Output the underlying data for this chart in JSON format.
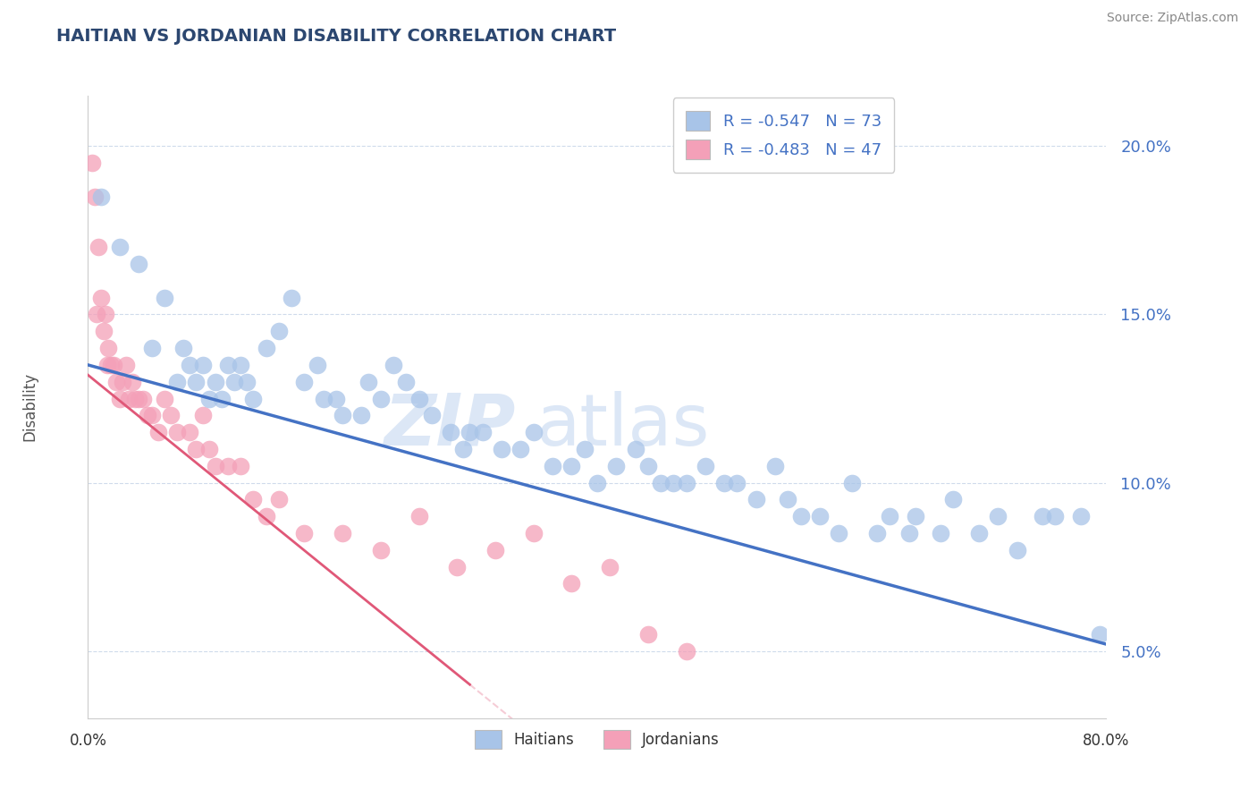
{
  "title": "HAITIAN VS JORDANIAN DISABILITY CORRELATION CHART",
  "source": "Source: ZipAtlas.com",
  "ylabel": "Disability",
  "watermark": "ZIPatlas",
  "xlim": [
    0.0,
    80.0
  ],
  "ylim": [
    3.0,
    21.5
  ],
  "yticks": [
    5.0,
    10.0,
    15.0,
    20.0
  ],
  "xticks": [
    0.0,
    80.0
  ],
  "haitian_color": "#a8c4e8",
  "haitian_line_color": "#4472c4",
  "jordanian_color": "#f4a0b8",
  "jordanian_line_color": "#e05878",
  "haitian_R": -0.547,
  "haitian_N": 73,
  "jordanian_R": -0.483,
  "jordanian_N": 47,
  "haitian_x": [
    1.0,
    2.5,
    4.0,
    5.0,
    6.0,
    7.0,
    7.5,
    8.0,
    8.5,
    9.0,
    9.5,
    10.0,
    10.5,
    11.0,
    11.5,
    12.0,
    12.5,
    13.0,
    14.0,
    15.0,
    16.0,
    17.0,
    18.0,
    18.5,
    19.5,
    20.0,
    21.5,
    22.0,
    23.0,
    24.0,
    25.0,
    26.0,
    27.0,
    28.5,
    29.5,
    30.0,
    31.0,
    32.5,
    34.0,
    35.0,
    36.5,
    38.0,
    39.0,
    40.0,
    41.5,
    43.0,
    44.0,
    45.0,
    46.0,
    47.0,
    48.5,
    50.0,
    51.0,
    52.5,
    54.0,
    55.0,
    56.0,
    57.5,
    59.0,
    60.0,
    62.0,
    63.0,
    64.5,
    65.0,
    67.0,
    68.0,
    70.0,
    71.5,
    73.0,
    75.0,
    76.0,
    78.0,
    79.5
  ],
  "haitian_y": [
    18.5,
    17.0,
    16.5,
    14.0,
    15.5,
    13.0,
    14.0,
    13.5,
    13.0,
    13.5,
    12.5,
    13.0,
    12.5,
    13.5,
    13.0,
    13.5,
    13.0,
    12.5,
    14.0,
    14.5,
    15.5,
    13.0,
    13.5,
    12.5,
    12.5,
    12.0,
    12.0,
    13.0,
    12.5,
    13.5,
    13.0,
    12.5,
    12.0,
    11.5,
    11.0,
    11.5,
    11.5,
    11.0,
    11.0,
    11.5,
    10.5,
    10.5,
    11.0,
    10.0,
    10.5,
    11.0,
    10.5,
    10.0,
    10.0,
    10.0,
    10.5,
    10.0,
    10.0,
    9.5,
    10.5,
    9.5,
    9.0,
    9.0,
    8.5,
    10.0,
    8.5,
    9.0,
    8.5,
    9.0,
    8.5,
    9.5,
    8.5,
    9.0,
    8.0,
    9.0,
    9.0,
    9.0,
    5.5
  ],
  "jordanian_x": [
    0.3,
    0.5,
    0.7,
    0.8,
    1.0,
    1.2,
    1.4,
    1.5,
    1.6,
    1.8,
    2.0,
    2.2,
    2.5,
    2.7,
    3.0,
    3.2,
    3.5,
    3.7,
    4.0,
    4.3,
    4.7,
    5.0,
    5.5,
    6.0,
    6.5,
    7.0,
    8.0,
    8.5,
    9.0,
    9.5,
    10.0,
    11.0,
    12.0,
    13.0,
    14.0,
    15.0,
    17.0,
    20.0,
    23.0,
    26.0,
    29.0,
    32.0,
    35.0,
    38.0,
    41.0,
    44.0,
    47.0
  ],
  "jordanian_y": [
    19.5,
    18.5,
    15.0,
    17.0,
    15.5,
    14.5,
    15.0,
    13.5,
    14.0,
    13.5,
    13.5,
    13.0,
    12.5,
    13.0,
    13.5,
    12.5,
    13.0,
    12.5,
    12.5,
    12.5,
    12.0,
    12.0,
    11.5,
    12.5,
    12.0,
    11.5,
    11.5,
    11.0,
    12.0,
    11.0,
    10.5,
    10.5,
    10.5,
    9.5,
    9.0,
    9.5,
    8.5,
    8.5,
    8.0,
    9.0,
    7.5,
    8.0,
    8.5,
    7.0,
    7.5,
    5.5,
    5.0
  ],
  "blue_line_x0": 0.0,
  "blue_line_y0": 13.5,
  "blue_line_x1": 80.0,
  "blue_line_y1": 5.2,
  "pink_line_x0": 0.0,
  "pink_line_y0": 13.2,
  "pink_line_x1": 30.0,
  "pink_line_y1": 4.0
}
